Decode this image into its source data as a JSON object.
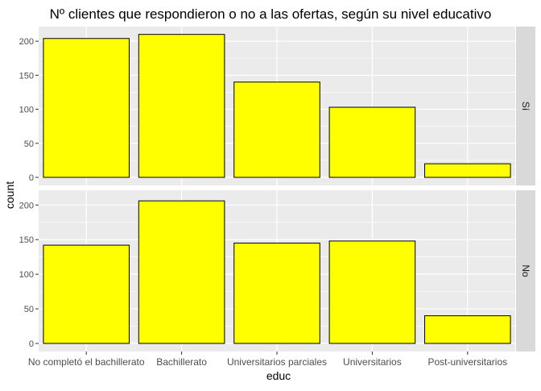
{
  "chart_data": {
    "type": "bar",
    "title": "Nº clientes que respondieron o no a las ofertas, según su nivel educativo",
    "xlabel": "educ",
    "ylabel": "count",
    "categories": [
      "No completó el bachillerato",
      "Bachillerato",
      "Universitarios parciales",
      "Universitarios",
      "Post-universitarios"
    ],
    "yticks": [
      0,
      50,
      100,
      150,
      200
    ],
    "ylim": [
      0,
      212
    ],
    "grid": true,
    "bar_color": "#ffff00",
    "bar_outline": "#000000",
    "panel_background": "#ebebeb",
    "strip_background": "#d9d9d9",
    "facets": [
      {
        "label": "Sí",
        "values": [
          204,
          210,
          140,
          103,
          20
        ]
      },
      {
        "label": "No",
        "values": [
          142,
          206,
          145,
          148,
          40
        ]
      }
    ]
  }
}
